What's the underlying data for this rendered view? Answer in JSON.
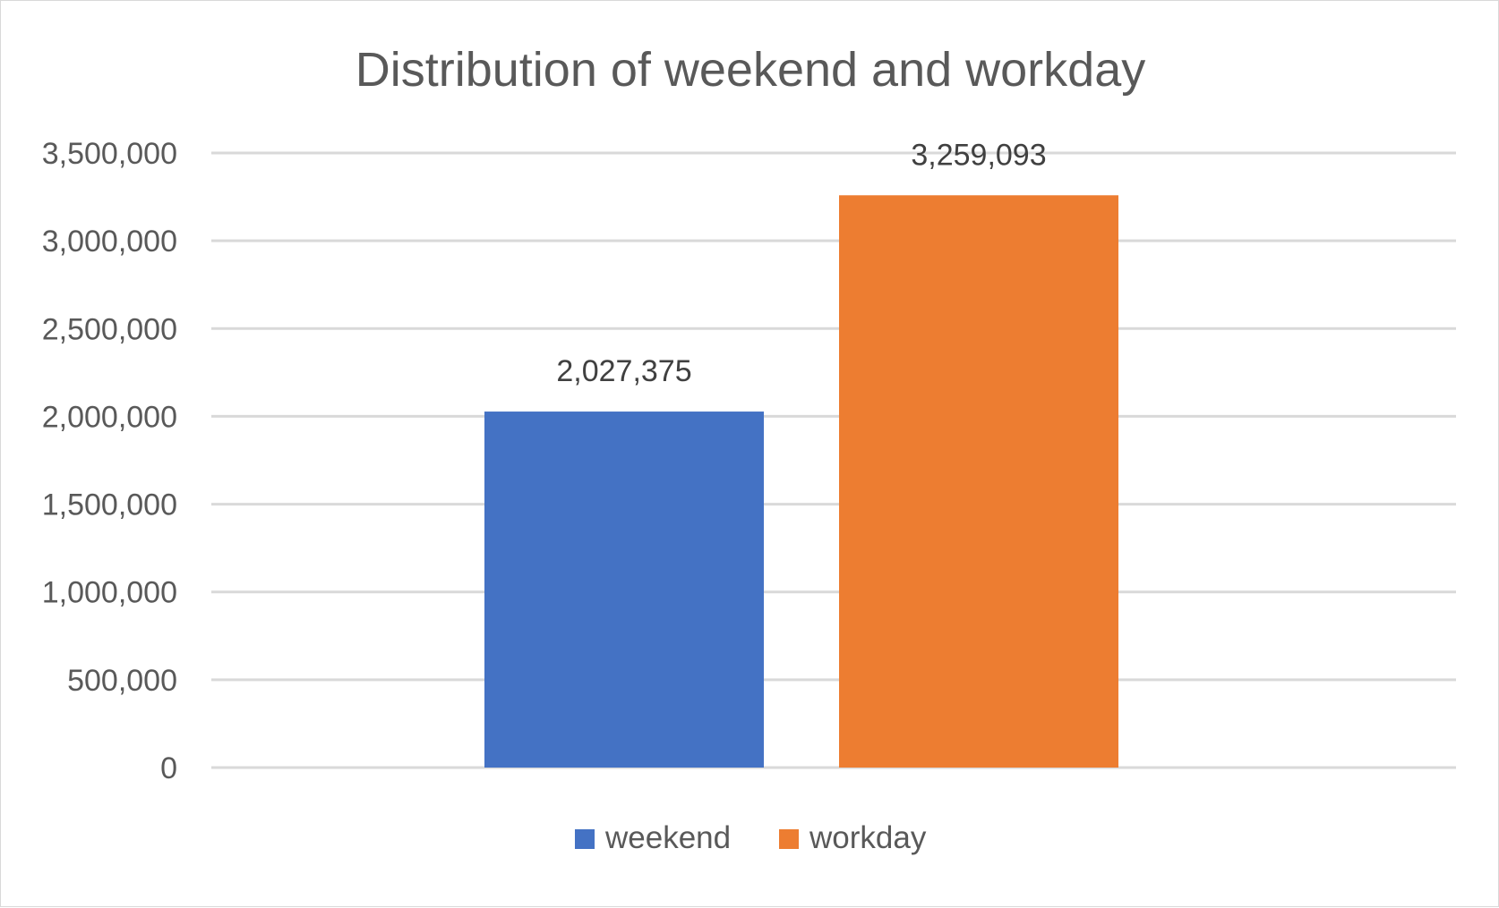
{
  "chart_data": {
    "type": "bar",
    "title": "Distribution of  weekend and workday",
    "xlabel": "",
    "ylabel": "",
    "ylim": [
      0,
      3500000
    ],
    "yticks": [
      0,
      500000,
      1000000,
      1500000,
      2000000,
      2500000,
      3000000,
      3500000
    ],
    "ytick_labels": [
      "0",
      "500,000",
      "1,000,000",
      "1,500,000",
      "2,000,000",
      "2,500,000",
      "3,000,000",
      "3,500,000"
    ],
    "grid": true,
    "legend_position": "bottom",
    "series": [
      {
        "name": "weekend",
        "values": [
          2027375
        ],
        "label": "2,027,375",
        "color": "#4472C4"
      },
      {
        "name": "workday",
        "values": [
          3259093
        ],
        "label": "3,259,093",
        "color": "#ED7D31"
      }
    ]
  }
}
